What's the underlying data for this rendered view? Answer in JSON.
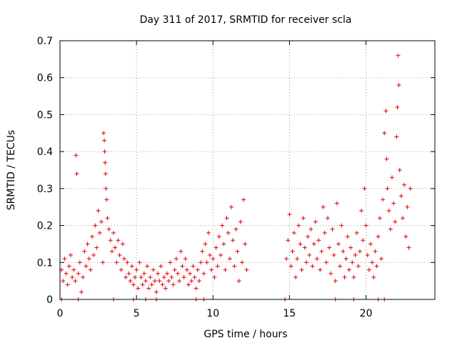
{
  "chart_data": {
    "type": "scatter",
    "title": "Day 311 of 2017, SRMTID for receiver scla",
    "xlabel": "GPS time / hours",
    "ylabel": "SRMTID / TECUs",
    "xlim": [
      0,
      24.5
    ],
    "ylim": [
      0,
      0.7
    ],
    "xticks": [
      0,
      5,
      10,
      15,
      20
    ],
    "yticks": [
      0,
      0.1,
      0.2,
      0.3,
      0.4,
      0.5,
      0.6,
      0.7
    ],
    "xtick_labels": [
      "0",
      "5",
      "10",
      "15",
      "20"
    ],
    "ytick_labels": [
      "0",
      "0.1",
      "0.2",
      "0.3",
      "0.4",
      "0.5",
      "0.6",
      "0.7"
    ],
    "grid": true,
    "marker": "+",
    "color": "#e00000",
    "series": [
      {
        "name": "SRMTID",
        "points": [
          [
            0.1,
            0.08
          ],
          [
            0.2,
            0.05
          ],
          [
            0.3,
            0.11
          ],
          [
            0.4,
            0.07
          ],
          [
            0.5,
            0.04
          ],
          [
            0.6,
            0.09
          ],
          [
            0.7,
            0.12
          ],
          [
            0.8,
            0.06
          ],
          [
            0.9,
            0.08
          ],
          [
            1.0,
            0.05
          ],
          [
            1.05,
            0.39
          ],
          [
            1.1,
            0.34
          ],
          [
            1.2,
            0.07
          ],
          [
            1.3,
            0.1
          ],
          [
            1.4,
            0.02
          ],
          [
            1.5,
            0.06
          ],
          [
            1.6,
            0.13
          ],
          [
            1.7,
            0.09
          ],
          [
            1.8,
            0.15
          ],
          [
            1.9,
            0.11
          ],
          [
            2.0,
            0.08
          ],
          [
            2.1,
            0.17
          ],
          [
            2.2,
            0.12
          ],
          [
            2.3,
            0.2
          ],
          [
            2.4,
            0.14
          ],
          [
            2.5,
            0.24
          ],
          [
            2.6,
            0.18
          ],
          [
            2.7,
            0.21
          ],
          [
            2.8,
            0.1
          ],
          [
            2.85,
            0.45
          ],
          [
            2.9,
            0.43
          ],
          [
            2.92,
            0.4
          ],
          [
            2.95,
            0.37
          ],
          [
            2.98,
            0.34
          ],
          [
            3.0,
            0.3
          ],
          [
            3.05,
            0.27
          ],
          [
            3.1,
            0.22
          ],
          [
            3.2,
            0.19
          ],
          [
            3.3,
            0.16
          ],
          [
            3.4,
            0.13
          ],
          [
            3.5,
            0.18
          ],
          [
            3.6,
            0.14
          ],
          [
            3.7,
            0.1
          ],
          [
            3.8,
            0.16
          ],
          [
            3.9,
            0.12
          ],
          [
            4.0,
            0.08
          ],
          [
            4.1,
            0.15
          ],
          [
            4.2,
            0.11
          ],
          [
            4.3,
            0.06
          ],
          [
            4.4,
            0.1
          ],
          [
            4.5,
            0.07
          ],
          [
            4.6,
            0.05
          ],
          [
            4.7,
            0.09
          ],
          [
            4.8,
            0.04
          ],
          [
            4.9,
            0.06
          ],
          [
            5.0,
            0.08
          ],
          [
            5.1,
            0.03
          ],
          [
            5.2,
            0.1
          ],
          [
            5.3,
            0.06
          ],
          [
            5.4,
            0.04
          ],
          [
            5.5,
            0.07
          ],
          [
            5.6,
            0.05
          ],
          [
            5.7,
            0.09
          ],
          [
            5.8,
            0.03
          ],
          [
            5.9,
            0.06
          ],
          [
            6.0,
            0.04
          ],
          [
            6.1,
            0.08
          ],
          [
            6.2,
            0.05
          ],
          [
            6.3,
            0.02
          ],
          [
            6.4,
            0.07
          ],
          [
            6.5,
            0.05
          ],
          [
            6.6,
            0.09
          ],
          [
            6.7,
            0.04
          ],
          [
            6.8,
            0.06
          ],
          [
            6.9,
            0.03
          ],
          [
            7.0,
            0.07
          ],
          [
            7.1,
            0.05
          ],
          [
            7.2,
            0.1
          ],
          [
            7.3,
            0.06
          ],
          [
            7.4,
            0.04
          ],
          [
            7.5,
            0.08
          ],
          [
            7.6,
            0.11
          ],
          [
            7.7,
            0.07
          ],
          [
            7.8,
            0.05
          ],
          [
            7.9,
            0.13
          ],
          [
            8.0,
            0.09
          ],
          [
            8.1,
            0.06
          ],
          [
            8.2,
            0.11
          ],
          [
            8.3,
            0.08
          ],
          [
            8.4,
            0.04
          ],
          [
            8.5,
            0.07
          ],
          [
            8.6,
            0.05
          ],
          [
            8.7,
            0.09
          ],
          [
            8.8,
            0.06
          ],
          [
            8.9,
            0.03
          ],
          [
            9.0,
            0.08
          ],
          [
            9.1,
            0.05
          ],
          [
            9.2,
            0.1
          ],
          [
            9.3,
            0.13
          ],
          [
            9.4,
            0.07
          ],
          [
            9.5,
            0.15
          ],
          [
            9.6,
            0.1
          ],
          [
            9.7,
            0.18
          ],
          [
            9.8,
            0.12
          ],
          [
            9.9,
            0.08
          ],
          [
            10.0,
            0.11
          ],
          [
            10.1,
            0.06
          ],
          [
            10.2,
            0.14
          ],
          [
            10.3,
            0.09
          ],
          [
            10.4,
            0.17
          ],
          [
            10.5,
            0.12
          ],
          [
            10.6,
            0.2
          ],
          [
            10.7,
            0.15
          ],
          [
            10.8,
            0.08
          ],
          [
            10.9,
            0.22
          ],
          [
            11.0,
            0.18
          ],
          [
            11.1,
            0.11
          ],
          [
            11.2,
            0.25
          ],
          [
            11.3,
            0.16
          ],
          [
            11.4,
            0.09
          ],
          [
            11.5,
            0.19
          ],
          [
            11.6,
            0.13
          ],
          [
            11.7,
            0.05
          ],
          [
            11.8,
            0.21
          ],
          [
            11.9,
            0.1
          ],
          [
            12.0,
            0.27
          ],
          [
            12.1,
            0.15
          ],
          [
            12.2,
            0.08
          ],
          [
            14.8,
            0.11
          ],
          [
            14.9,
            0.16
          ],
          [
            15.0,
            0.23
          ],
          [
            15.1,
            0.09
          ],
          [
            15.2,
            0.13
          ],
          [
            15.3,
            0.18
          ],
          [
            15.4,
            0.06
          ],
          [
            15.5,
            0.11
          ],
          [
            15.6,
            0.2
          ],
          [
            15.7,
            0.15
          ],
          [
            15.8,
            0.08
          ],
          [
            15.9,
            0.22
          ],
          [
            16.0,
            0.14
          ],
          [
            16.1,
            0.1
          ],
          [
            16.2,
            0.17
          ],
          [
            16.3,
            0.12
          ],
          [
            16.4,
            0.19
          ],
          [
            16.5,
            0.09
          ],
          [
            16.6,
            0.15
          ],
          [
            16.7,
            0.21
          ],
          [
            16.8,
            0.11
          ],
          [
            16.9,
            0.16
          ],
          [
            17.0,
            0.08
          ],
          [
            17.1,
            0.13
          ],
          [
            17.2,
            0.25
          ],
          [
            17.3,
            0.18
          ],
          [
            17.4,
            0.1
          ],
          [
            17.5,
            0.22
          ],
          [
            17.6,
            0.14
          ],
          [
            17.7,
            0.07
          ],
          [
            17.8,
            0.19
          ],
          [
            17.9,
            0.12
          ],
          [
            18.0,
            0.05
          ],
          [
            18.1,
            0.26
          ],
          [
            18.2,
            0.15
          ],
          [
            18.3,
            0.09
          ],
          [
            18.4,
            0.2
          ],
          [
            18.5,
            0.13
          ],
          [
            18.6,
            0.06
          ],
          [
            18.7,
            0.11
          ],
          [
            18.8,
            0.17
          ],
          [
            18.9,
            0.08
          ],
          [
            19.0,
            0.14
          ],
          [
            19.1,
            0.1
          ],
          [
            19.2,
            0.06
          ],
          [
            19.3,
            0.12
          ],
          [
            19.4,
            0.18
          ],
          [
            19.5,
            0.09
          ],
          [
            19.6,
            0.13
          ],
          [
            19.7,
            0.24
          ],
          [
            19.8,
            0.16
          ],
          [
            19.9,
            0.3
          ],
          [
            20.0,
            0.2
          ],
          [
            20.1,
            0.12
          ],
          [
            20.2,
            0.08
          ],
          [
            20.3,
            0.15
          ],
          [
            20.4,
            0.1
          ],
          [
            20.5,
            0.06
          ],
          [
            20.6,
            0.13
          ],
          [
            20.7,
            0.09
          ],
          [
            20.8,
            0.17
          ],
          [
            20.9,
            0.22
          ],
          [
            21.0,
            0.11
          ],
          [
            21.1,
            0.27
          ],
          [
            21.2,
            0.45
          ],
          [
            21.3,
            0.51
          ],
          [
            21.35,
            0.38
          ],
          [
            21.4,
            0.3
          ],
          [
            21.5,
            0.24
          ],
          [
            21.6,
            0.19
          ],
          [
            21.7,
            0.33
          ],
          [
            21.8,
            0.26
          ],
          [
            21.9,
            0.21
          ],
          [
            22.0,
            0.44
          ],
          [
            22.05,
            0.52
          ],
          [
            22.1,
            0.66
          ],
          [
            22.15,
            0.58
          ],
          [
            22.2,
            0.35
          ],
          [
            22.3,
            0.28
          ],
          [
            22.4,
            0.22
          ],
          [
            22.5,
            0.31
          ],
          [
            22.6,
            0.17
          ],
          [
            22.7,
            0.25
          ],
          [
            22.8,
            0.14
          ],
          [
            22.9,
            0.3
          ]
        ]
      }
    ],
    "zero_line_points": [
      0.1,
      1.2,
      3.5,
      4.8,
      5.6,
      6.3,
      8.9,
      9.4,
      14.7,
      18.0,
      19.2,
      20.8,
      21.2
    ]
  }
}
